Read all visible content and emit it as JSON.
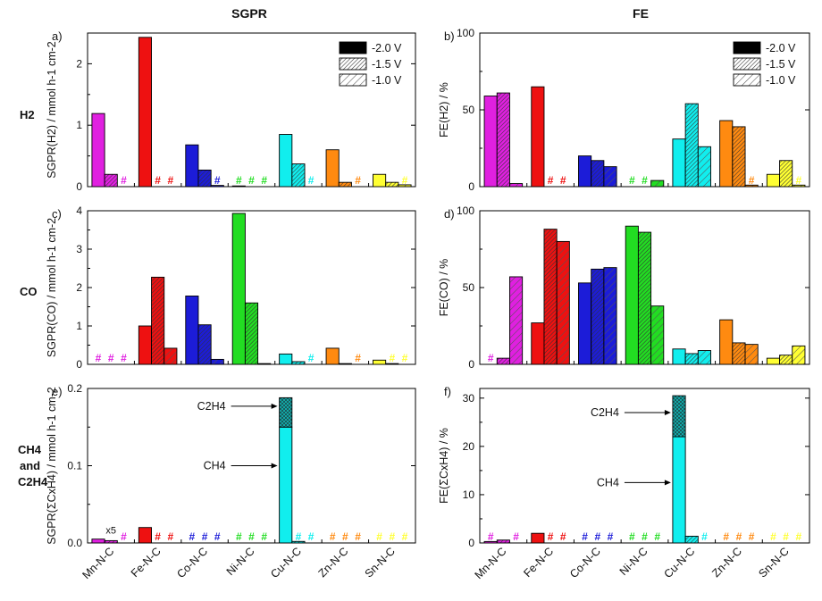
{
  "figure": {
    "col_titles": [
      "SGPR",
      "FE"
    ],
    "row_labels": [
      {
        "lines": [
          "H2"
        ]
      },
      {
        "lines": [
          "CO"
        ]
      },
      {
        "lines": [
          "CH4",
          "and",
          "C2H4"
        ]
      }
    ]
  },
  "legend": {
    "entries": [
      "-2.0 V",
      "-1.5 V",
      "-1.0 V"
    ],
    "patterns": [
      "solid",
      "dense-hatch",
      "sparse-hatch"
    ]
  },
  "colors": {
    "Mn-N-C": "#e020e0",
    "Fe-N-C": "#ee1111",
    "Co-N-C": "#1c1cd8",
    "Ni-N-C": "#22dd22",
    "Cu-N-C": "#11eeee",
    "Zn-N-C": "#ff8a10",
    "Sn-N-C": "#ffff33"
  },
  "chart_data": [
    {
      "id": "a",
      "panel_label": "a)",
      "type": "bar",
      "ylabel": "SGPR(H2) / mmol h-1 cm-2",
      "ylim": [
        0,
        2.5
      ],
      "yticks": [
        "0",
        "1",
        "2"
      ],
      "ytick_values": [
        0,
        1,
        2
      ],
      "show_x_labels": false,
      "categories": [
        "Mn-N-C",
        "Fe-N-C",
        "Co-N-C",
        "Ni-N-C",
        "Cu-N-C",
        "Zn-N-C",
        "Sn-N-C"
      ],
      "series": [
        {
          "name": "-2.0 V",
          "values": [
            1.19,
            2.43,
            0.68,
            0.0,
            0.85,
            0.6,
            0.2
          ]
        },
        {
          "name": "-1.5 V",
          "values": [
            0.2,
            null,
            0.27,
            null,
            0.37,
            0.07,
            0.07
          ]
        },
        {
          "name": "-1.0 V",
          "values": [
            null,
            null,
            0.02,
            null,
            null,
            null,
            0.03
          ]
        }
      ]
    },
    {
      "id": "b",
      "panel_label": "b)",
      "type": "bar",
      "ylabel": "FE(H2) / %",
      "ylim": [
        0,
        100
      ],
      "yticks": [
        "0",
        "50",
        "100"
      ],
      "ytick_values": [
        0,
        50,
        100
      ],
      "show_x_labels": false,
      "categories": [
        "Mn-N-C",
        "Fe-N-C",
        "Co-N-C",
        "Ni-N-C",
        "Cu-N-C",
        "Zn-N-C",
        "Sn-N-C"
      ],
      "series": [
        {
          "name": "-2.0 V",
          "values": [
            59,
            65,
            20,
            null,
            31,
            43,
            8
          ]
        },
        {
          "name": "-1.5 V",
          "values": [
            61,
            null,
            17,
            null,
            54,
            39,
            17
          ]
        },
        {
          "name": "-1.0 V",
          "values": [
            2,
            null,
            13,
            4,
            26,
            1,
            1
          ]
        }
      ]
    },
    {
      "id": "c",
      "panel_label": "c)",
      "type": "bar",
      "ylabel": "SGPR(CO) / mmol h-1 cm-2",
      "ylim": [
        0,
        4
      ],
      "yticks": [
        "0",
        "1",
        "2",
        "3",
        "4"
      ],
      "ytick_values": [
        0,
        1,
        2,
        3,
        4
      ],
      "show_x_labels": false,
      "categories": [
        "Mn-N-C",
        "Fe-N-C",
        "Co-N-C",
        "Ni-N-C",
        "Cu-N-C",
        "Zn-N-C",
        "Sn-N-C"
      ],
      "series": [
        {
          "name": "-2.0 V",
          "values": [
            null,
            1.0,
            1.78,
            3.93,
            0.27,
            0.42,
            0.11
          ]
        },
        {
          "name": "-1.5 V",
          "values": [
            null,
            2.27,
            1.03,
            1.6,
            0.07,
            0.02,
            0.02
          ]
        },
        {
          "name": "-1.0 V",
          "values": [
            null,
            0.42,
            0.13,
            0.02,
            null,
            null,
            null
          ]
        }
      ]
    },
    {
      "id": "d",
      "panel_label": "d)",
      "type": "bar",
      "ylabel": "FE(CO) / %",
      "ylim": [
        0,
        100
      ],
      "yticks": [
        "0",
        "50",
        "100"
      ],
      "ytick_values": [
        0,
        50,
        100
      ],
      "show_x_labels": false,
      "categories": [
        "Mn-N-C",
        "Fe-N-C",
        "Co-N-C",
        "Ni-N-C",
        "Cu-N-C",
        "Zn-N-C",
        "Sn-N-C"
      ],
      "series": [
        {
          "name": "-2.0 V",
          "values": [
            null,
            27,
            53,
            90,
            10,
            29,
            4
          ]
        },
        {
          "name": "-1.5 V",
          "values": [
            4,
            88,
            62,
            86,
            7,
            14,
            6
          ]
        },
        {
          "name": "-1.0 V",
          "values": [
            57,
            80,
            63,
            38,
            9,
            13,
            12
          ]
        }
      ]
    },
    {
      "id": "e",
      "panel_label": "e)",
      "type": "bar",
      "ylabel": "SGPR(ΣCxH4) / mmol h-1 cm-2",
      "ylim": [
        0,
        0.2
      ],
      "yticks": [
        "0.0",
        "0.1",
        "0.2"
      ],
      "ytick_values": [
        0,
        0.1,
        0.2
      ],
      "show_x_labels": true,
      "categories": [
        "Mn-N-C",
        "Fe-N-C",
        "Co-N-C",
        "Ni-N-C",
        "Cu-N-C",
        "Zn-N-C",
        "Sn-N-C"
      ],
      "series": [
        {
          "name": "-2.0 V",
          "values": [
            0.005,
            0.02,
            null,
            null,
            0.15,
            null,
            null
          ]
        },
        {
          "name": "-1.5 V",
          "values": [
            0.003,
            null,
            null,
            null,
            0.002,
            null,
            null
          ]
        },
        {
          "name": "-1.0 V",
          "values": [
            null,
            null,
            null,
            null,
            null,
            null,
            null
          ]
        }
      ],
      "stacked_c2h4": {
        "category": "Cu-N-C",
        "series": "-2.0 V",
        "value": 0.038
      },
      "annotations": {
        "c2h4": "C2H4",
        "ch4": "CH4",
        "x5": "x5"
      },
      "annotation_values": {
        "c2h4_y": 0.177,
        "ch4_y": 0.1,
        "x5_y": 0.012
      }
    },
    {
      "id": "f",
      "panel_label": "f)",
      "type": "bar",
      "ylabel": "FE(ΣCxH4) / %",
      "ylim": [
        0,
        32
      ],
      "yticks": [
        "0",
        "10",
        "20",
        "30"
      ],
      "ytick_values": [
        0,
        10,
        20,
        30
      ],
      "show_x_labels": true,
      "categories": [
        "Mn-N-C",
        "Fe-N-C",
        "Co-N-C",
        "Ni-N-C",
        "Cu-N-C",
        "Zn-N-C",
        "Sn-N-C"
      ],
      "series": [
        {
          "name": "-2.0 V",
          "values": [
            0.3,
            2.0,
            null,
            null,
            22,
            null,
            null
          ]
        },
        {
          "name": "-1.5 V",
          "values": [
            0.6,
            null,
            null,
            null,
            1.4,
            null,
            null
          ]
        },
        {
          "name": "-1.0 V",
          "values": [
            null,
            null,
            null,
            null,
            null,
            null,
            null
          ]
        }
      ],
      "stacked_c2h4": {
        "category": "Cu-N-C",
        "series": "-2.0 V",
        "value": 8.5
      },
      "annotations": {
        "c2h4": "C2H4",
        "ch4": "CH4"
      },
      "annotation_values": {
        "c2h4_y": 27,
        "ch4_y": 12.5
      }
    }
  ],
  "missing_markers": [
    {
      "panel": "a",
      "category": "Mn-N-C",
      "series": "-1.0 V"
    },
    {
      "panel": "a",
      "category": "Fe-N-C",
      "series": "-1.5 V"
    },
    {
      "panel": "a",
      "category": "Fe-N-C",
      "series": "-1.0 V"
    },
    {
      "panel": "a",
      "category": "Co-N-C",
      "series": "-1.0 V"
    },
    {
      "panel": "a",
      "category": "Ni-N-C",
      "series": "-2.0 V"
    },
    {
      "panel": "a",
      "category": "Ni-N-C",
      "series": "-1.5 V"
    },
    {
      "panel": "a",
      "category": "Ni-N-C",
      "series": "-1.0 V"
    },
    {
      "panel": "a",
      "category": "Cu-N-C",
      "series": "-1.0 V"
    },
    {
      "panel": "a",
      "category": "Zn-N-C",
      "series": "-1.0 V"
    },
    {
      "panel": "a",
      "category": "Sn-N-C",
      "series": "-1.0 V"
    },
    {
      "panel": "b",
      "category": "Fe-N-C",
      "series": "-1.5 V"
    },
    {
      "panel": "b",
      "category": "Fe-N-C",
      "series": "-1.0 V"
    },
    {
      "panel": "b",
      "category": "Ni-N-C",
      "series": "-2.0 V"
    },
    {
      "panel": "b",
      "category": "Ni-N-C",
      "series": "-1.5 V"
    },
    {
      "panel": "b",
      "category": "Zn-N-C",
      "series": "-1.0 V"
    },
    {
      "panel": "b",
      "category": "Sn-N-C",
      "series": "-1.0 V"
    },
    {
      "panel": "c",
      "category": "Mn-N-C",
      "series": "-2.0 V"
    },
    {
      "panel": "c",
      "category": "Mn-N-C",
      "series": "-1.5 V"
    },
    {
      "panel": "c",
      "category": "Mn-N-C",
      "series": "-1.0 V"
    },
    {
      "panel": "c",
      "category": "Cu-N-C",
      "series": "-1.0 V"
    },
    {
      "panel": "c",
      "category": "Zn-N-C",
      "series": "-1.0 V"
    },
    {
      "panel": "c",
      "category": "Sn-N-C",
      "series": "-1.5 V"
    },
    {
      "panel": "c",
      "category": "Sn-N-C",
      "series": "-1.0 V"
    },
    {
      "panel": "d",
      "category": "Mn-N-C",
      "series": "-2.0 V"
    },
    {
      "panel": "e",
      "category": "Mn-N-C",
      "series": "-1.0 V"
    },
    {
      "panel": "e",
      "category": "Fe-N-C",
      "series": "-1.5 V"
    },
    {
      "panel": "e",
      "category": "Fe-N-C",
      "series": "-1.0 V"
    },
    {
      "panel": "e",
      "category": "Co-N-C",
      "series": "-2.0 V"
    },
    {
      "panel": "e",
      "category": "Co-N-C",
      "series": "-1.5 V"
    },
    {
      "panel": "e",
      "category": "Co-N-C",
      "series": "-1.0 V"
    },
    {
      "panel": "e",
      "category": "Ni-N-C",
      "series": "-2.0 V"
    },
    {
      "panel": "e",
      "category": "Ni-N-C",
      "series": "-1.5 V"
    },
    {
      "panel": "e",
      "category": "Ni-N-C",
      "series": "-1.0 V"
    },
    {
      "panel": "e",
      "category": "Cu-N-C",
      "series": "-1.5 V"
    },
    {
      "panel": "e",
      "category": "Cu-N-C",
      "series": "-1.0 V"
    },
    {
      "panel": "e",
      "category": "Zn-N-C",
      "series": "-2.0 V"
    },
    {
      "panel": "e",
      "category": "Zn-N-C",
      "series": "-1.5 V"
    },
    {
      "panel": "e",
      "category": "Zn-N-C",
      "series": "-1.0 V"
    },
    {
      "panel": "e",
      "category": "Sn-N-C",
      "series": "-2.0 V"
    },
    {
      "panel": "e",
      "category": "Sn-N-C",
      "series": "-1.5 V"
    },
    {
      "panel": "e",
      "category": "Sn-N-C",
      "series": "-1.0 V"
    },
    {
      "panel": "f",
      "category": "Mn-N-C",
      "series": "-2.0 V"
    },
    {
      "panel": "f",
      "category": "Mn-N-C",
      "series": "-1.0 V"
    },
    {
      "panel": "f",
      "category": "Fe-N-C",
      "series": "-1.5 V"
    },
    {
      "panel": "f",
      "category": "Fe-N-C",
      "series": "-1.0 V"
    },
    {
      "panel": "f",
      "category": "Co-N-C",
      "series": "-2.0 V"
    },
    {
      "panel": "f",
      "category": "Co-N-C",
      "series": "-1.5 V"
    },
    {
      "panel": "f",
      "category": "Co-N-C",
      "series": "-1.0 V"
    },
    {
      "panel": "f",
      "category": "Ni-N-C",
      "series": "-2.0 V"
    },
    {
      "panel": "f",
      "category": "Ni-N-C",
      "series": "-1.5 V"
    },
    {
      "panel": "f",
      "category": "Ni-N-C",
      "series": "-1.0 V"
    },
    {
      "panel": "f",
      "category": "Cu-N-C",
      "series": "-1.0 V"
    },
    {
      "panel": "f",
      "category": "Zn-N-C",
      "series": "-2.0 V"
    },
    {
      "panel": "f",
      "category": "Zn-N-C",
      "series": "-1.5 V"
    },
    {
      "panel": "f",
      "category": "Zn-N-C",
      "series": "-1.0 V"
    },
    {
      "panel": "f",
      "category": "Sn-N-C",
      "series": "-2.0 V"
    },
    {
      "panel": "f",
      "category": "Sn-N-C",
      "series": "-1.5 V"
    },
    {
      "panel": "f",
      "category": "Sn-N-C",
      "series": "-1.0 V"
    }
  ],
  "marker_symbol": "#"
}
